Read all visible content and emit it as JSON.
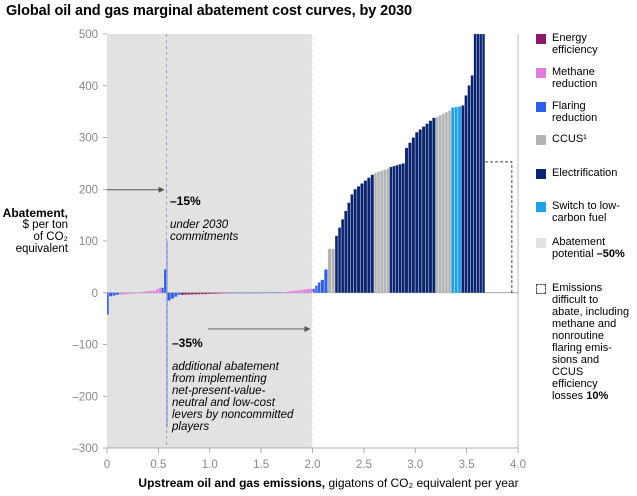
{
  "title": "Global oil and gas marginal abatement cost curves, by 2030",
  "colors": {
    "energy_efficiency": "#8B1A6B",
    "methane_reduction": "#E07BE0",
    "flaring_reduction": "#2F5FE8",
    "ccus": "#B4B4B4",
    "electrification": "#0B2470",
    "switch_low_carbon": "#1FA3E6",
    "abatement_potential": "#E2E2E2",
    "text": "#000000",
    "axis_text": "#888888"
  },
  "legend": [
    {
      "key": "energy_efficiency",
      "label": "Energy\nefficiency",
      "top": 0
    },
    {
      "key": "methane_reduction",
      "label": "Methane\nreduction",
      "top": 34
    },
    {
      "key": "flaring_reduction",
      "label": "Flaring\nreduction",
      "top": 68
    },
    {
      "key": "ccus",
      "label": "CCUS¹",
      "top": 101
    },
    {
      "key": "electrification",
      "label": "Electrification",
      "top": 135
    },
    {
      "key": "switch_low_carbon",
      "label": "Switch to low-\ncarbon fuel",
      "top": 168
    },
    {
      "key": "abatement_potential",
      "label": "Abatement\npotential",
      "bold_suffix": "–50%",
      "top": 204
    },
    {
      "key": "difficult",
      "label": "Emissions\ndifficult to\nabate, including\nmethane and\nnonroutine\nflaring emis-\nsions and\nCCUS\nefficiency\nlosses",
      "bold_suffix": "10%",
      "top": 250
    }
  ],
  "y_axis": {
    "label_bold": "Abatement,",
    "label_rest": "$ per ton\nof CO₂\nequivalent"
  },
  "x_axis": {
    "label_bold": "Upstream oil and gas emissions,",
    "label_rest": " gigatons of CO₂ equivalent per year"
  },
  "annotations": {
    "upper_pct": "–15%",
    "upper_text": "under 2030\ncommitments",
    "lower_pct": "–35%",
    "lower_text": "additional abatement\nfrom implementing\nnet-present-value-\nneutral and low-cost\nlevers by noncommitted\nplayers"
  },
  "chart_data": {
    "type": "bar",
    "subtype": "marginal abatement cost curve (variable-width bars)",
    "title": "Global oil and gas marginal abatement cost curves, by 2030",
    "xlabel": "Upstream oil and gas emissions, gigatons of CO₂ equivalent per year",
    "ylabel": "Abatement, $ per ton of CO₂ equivalent",
    "xlim": [
      0,
      4.0
    ],
    "ylim": [
      -300,
      500
    ],
    "x_ticks": [
      0,
      0.5,
      1.0,
      1.5,
      2.0,
      2.5,
      3.0,
      3.5,
      4.0
    ],
    "x_tick_labels": [
      "0",
      "0.5",
      "1.0",
      "1.5",
      "2.0",
      "2.5",
      "3.0",
      "3.5",
      "4.0"
    ],
    "y_ticks": [
      -300,
      -200,
      -100,
      0,
      100,
      200,
      300,
      400,
      500
    ],
    "y_tick_labels": [
      "–300",
      "–200",
      "–100",
      "0",
      "100",
      "200",
      "300",
      "400",
      "500"
    ],
    "shaded_region": {
      "x_start": 0,
      "x_end": 2.0,
      "label": "Abatement potential –50%"
    },
    "reference_lines": [
      {
        "x": 0.58,
        "label": "–15% under 2030 commitments"
      },
      {
        "x": 2.0,
        "label": "–35% additional abatement"
      }
    ],
    "difficult_to_abate_box": {
      "x_start": 3.68,
      "x_end": 3.94,
      "y_top": 253,
      "label": "Emissions difficult to abate 10%"
    },
    "segments": [
      {
        "x0": 0.0,
        "x1": 0.02,
        "y0": -25,
        "y1": -60,
        "category": "flaring_reduction"
      },
      {
        "x0": 0.02,
        "x1": 0.12,
        "y0": -7,
        "y1": -4,
        "category": "flaring_reduction"
      },
      {
        "x0": 0.12,
        "x1": 0.3,
        "y0": -4,
        "y1": -1,
        "category": "methane_reduction"
      },
      {
        "x0": 0.3,
        "x1": 0.45,
        "y0": 1,
        "y1": 4,
        "category": "methane_reduction"
      },
      {
        "x0": 0.45,
        "x1": 0.53,
        "y0": 4,
        "y1": 10,
        "category": "methane_reduction"
      },
      {
        "x0": 0.53,
        "x1": 0.58,
        "y0": 10,
        "y1": 45,
        "category": "flaring_reduction"
      },
      {
        "x0": 0.58,
        "x1": 0.59,
        "y0": 100,
        "y1": 100,
        "category": "flaring_reduction"
      },
      {
        "x0": 0.58,
        "x1": 0.59,
        "y0": -260,
        "y1": -260,
        "category": "flaring_reduction"
      },
      {
        "x0": 0.59,
        "x1": 0.72,
        "y0": -15,
        "y1": -4,
        "category": "flaring_reduction"
      },
      {
        "x0": 0.72,
        "x1": 1.2,
        "y0": -4,
        "y1": -1,
        "category": "energy_efficiency"
      },
      {
        "x0": 1.2,
        "x1": 1.7,
        "y0": -1,
        "y1": 1,
        "category": "flaring_reduction"
      },
      {
        "x0": 1.7,
        "x1": 2.0,
        "y0": 1,
        "y1": 8,
        "category": "methane_reduction"
      },
      {
        "x0": 2.0,
        "x1": 2.08,
        "y0": 8,
        "y1": 20,
        "category": "flaring_reduction"
      },
      {
        "x0": 2.08,
        "x1": 2.15,
        "y0": 25,
        "y1": 45,
        "category": "flaring_reduction"
      },
      {
        "x0": 2.15,
        "x1": 2.22,
        "y0": 85,
        "y1": 85,
        "category": "ccus"
      },
      {
        "x0": 2.22,
        "x1": 2.4,
        "y0": 110,
        "y1": 190,
        "category": "electrification"
      },
      {
        "x0": 2.4,
        "x1": 2.6,
        "y0": 200,
        "y1": 228,
        "category": "electrification"
      },
      {
        "x0": 2.6,
        "x1": 2.75,
        "y0": 232,
        "y1": 240,
        "category": "ccus"
      },
      {
        "x0": 2.75,
        "x1": 2.9,
        "y0": 243,
        "y1": 250,
        "category": "electrification"
      },
      {
        "x0": 2.9,
        "x1": 3.0,
        "y0": 280,
        "y1": 300,
        "category": "electrification"
      },
      {
        "x0": 3.0,
        "x1": 3.2,
        "y0": 310,
        "y1": 338,
        "category": "electrification"
      },
      {
        "x0": 3.2,
        "x1": 3.35,
        "y0": 340,
        "y1": 352,
        "category": "ccus"
      },
      {
        "x0": 3.35,
        "x1": 3.45,
        "y0": 358,
        "y1": 360,
        "category": "switch_low_carbon"
      },
      {
        "x0": 3.45,
        "x1": 3.57,
        "y0": 362,
        "y1": 420,
        "category": "electrification"
      },
      {
        "x0": 3.57,
        "x1": 3.68,
        "y0": 500,
        "y1": 500,
        "category": "electrification"
      }
    ]
  }
}
